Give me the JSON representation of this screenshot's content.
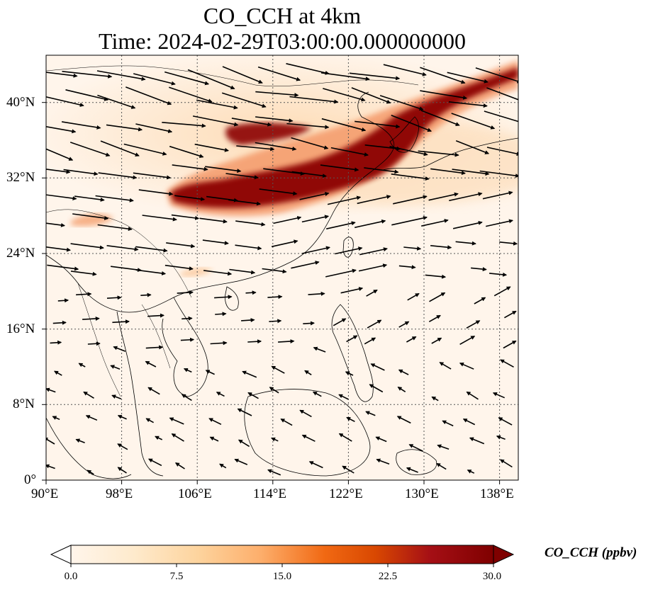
{
  "title": {
    "line1": "CO_CCH at 4km",
    "line2": "Time: 2024-02-29T03:00:00.000000000"
  },
  "map": {
    "lon_range": [
      90,
      140
    ],
    "lat_range": [
      0,
      45
    ],
    "lon_ticks": [
      "90°E",
      "98°E",
      "106°E",
      "114°E",
      "122°E",
      "130°E",
      "138°E"
    ],
    "lat_ticks": [
      "0°",
      "8°N",
      "16°N",
      "24°N",
      "32°N",
      "40°N"
    ],
    "lon_tick_values": [
      90,
      98,
      106,
      114,
      122,
      130,
      138
    ],
    "lat_tick_values": [
      0,
      8,
      16,
      24,
      32,
      40
    ],
    "gridlines": true,
    "field": "CO_CCH",
    "plume_description_lonlat": [
      [
        103,
        30
      ],
      [
        110,
        32
      ],
      [
        116,
        33
      ],
      [
        122,
        35
      ],
      [
        127,
        37
      ],
      [
        133,
        40
      ],
      [
        140,
        44
      ]
    ],
    "wind_direction": "westerly north of 20°N, easterly/northeasterly south of 15°N"
  },
  "colorbar": {
    "label": "CO_CCH (ppbv)",
    "ticks": [
      "0.0",
      "7.5",
      "15.0",
      "22.5",
      "30.0"
    ],
    "tick_values": [
      0,
      7.5,
      15,
      22.5,
      30
    ],
    "range": [
      0,
      30
    ],
    "extend": "both",
    "colors": [
      "#fff5eb",
      "#fdd49e",
      "#fdbb84",
      "#fc8d59",
      "#e34a33",
      "#b30000",
      "#7f0000"
    ]
  }
}
